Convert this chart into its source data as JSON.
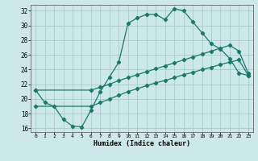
{
  "xlabel": "Humidex (Indice chaleur)",
  "background_color": "#cce8e8",
  "grid_color": "#aacccc",
  "line_color": "#1a7a6a",
  "xlim": [
    -0.5,
    23.5
  ],
  "ylim": [
    15.5,
    32.8
  ],
  "yticks": [
    16,
    18,
    20,
    22,
    24,
    26,
    28,
    30,
    32
  ],
  "xticks": [
    0,
    1,
    2,
    3,
    4,
    5,
    6,
    7,
    8,
    9,
    10,
    11,
    12,
    13,
    14,
    15,
    16,
    17,
    18,
    19,
    20,
    21,
    22,
    23
  ],
  "curve1_x": [
    0,
    1,
    2,
    3,
    4,
    5,
    6,
    7,
    8,
    9,
    10,
    11,
    12,
    13,
    14,
    15,
    16,
    17,
    18,
    19,
    20,
    21,
    22,
    23
  ],
  "curve1_y": [
    21.2,
    19.5,
    19.0,
    17.2,
    16.3,
    16.2,
    18.5,
    21.0,
    23.0,
    25.0,
    30.3,
    31.0,
    31.5,
    31.5,
    30.8,
    32.3,
    32.0,
    30.5,
    29.0,
    27.5,
    26.8,
    25.5,
    23.5,
    23.2
  ],
  "curve2_x": [
    0,
    6,
    7,
    8,
    9,
    10,
    11,
    12,
    13,
    14,
    15,
    16,
    17,
    18,
    19,
    20,
    21,
    22,
    23
  ],
  "curve2_y": [
    19.0,
    19.0,
    19.5,
    20.0,
    20.5,
    21.0,
    21.4,
    21.8,
    22.2,
    22.5,
    22.9,
    23.3,
    23.6,
    24.0,
    24.3,
    24.7,
    25.0,
    25.3,
    23.2
  ],
  "curve3_x": [
    0,
    6,
    7,
    8,
    9,
    10,
    11,
    12,
    13,
    14,
    15,
    16,
    17,
    18,
    19,
    20,
    21,
    22,
    23
  ],
  "curve3_y": [
    21.2,
    21.2,
    21.6,
    22.0,
    22.5,
    22.9,
    23.3,
    23.7,
    24.1,
    24.5,
    24.9,
    25.3,
    25.7,
    26.1,
    26.5,
    26.9,
    27.3,
    26.5,
    23.5
  ]
}
